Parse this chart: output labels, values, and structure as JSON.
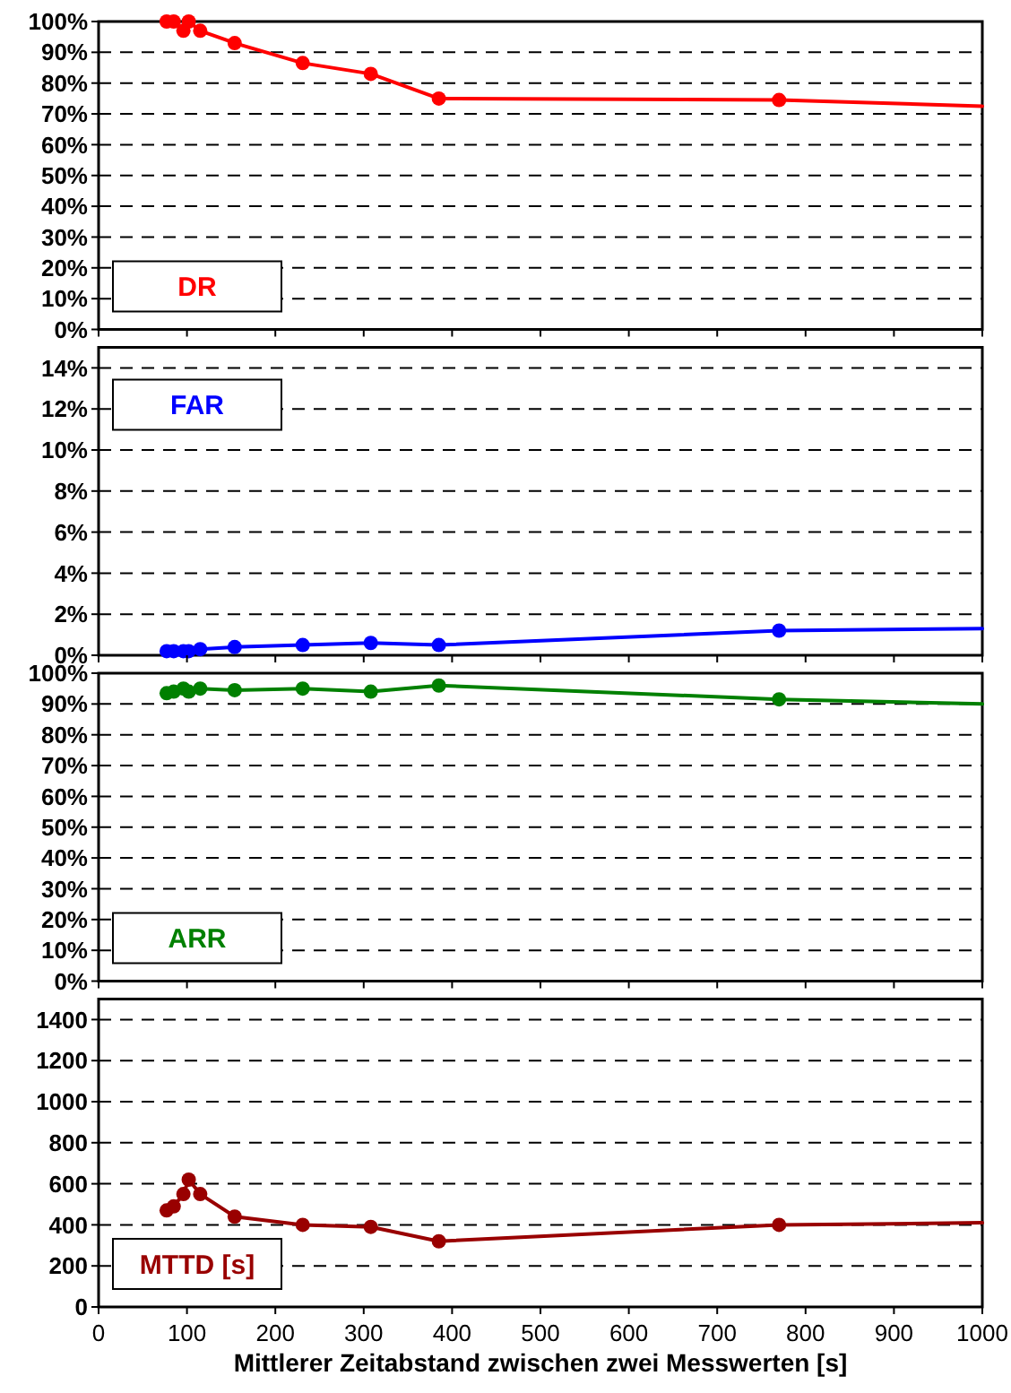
{
  "chart_data": [
    {
      "type": "line",
      "xlim": [
        0,
        1000
      ],
      "xticks": [
        0,
        100,
        200,
        300,
        400,
        500,
        600,
        700,
        800,
        900,
        1000
      ],
      "ylim": [
        0,
        100
      ],
      "yticks": [
        {
          "value": 0,
          "label": "0%"
        },
        {
          "value": 10,
          "label": "10%"
        },
        {
          "value": 20,
          "label": "20%"
        },
        {
          "value": 30,
          "label": "30%"
        },
        {
          "value": 40,
          "label": "40%"
        },
        {
          "value": 50,
          "label": "50%"
        },
        {
          "value": 60,
          "label": "60%"
        },
        {
          "value": 70,
          "label": "70%"
        },
        {
          "value": 80,
          "label": "80%"
        },
        {
          "value": 90,
          "label": "90%"
        },
        {
          "value": 100,
          "label": "100%"
        }
      ],
      "grid": "y",
      "legend": "bottom left",
      "tick_labels": "y",
      "line_style": "solid",
      "series": [
        {
          "name": "DR",
          "color": "#ff0000",
          "marker": "circle",
          "x": [
            77,
            85,
            96,
            102,
            115,
            154,
            231,
            308,
            385,
            770
          ],
          "values": [
            100,
            100,
            97,
            100,
            97,
            93,
            86.5,
            83,
            75,
            74.5
          ]
        },
        {
          "color": "#ff0000",
          "marker": "none",
          "x": [
            770,
            1000
          ],
          "values": [
            74.5,
            72.5
          ]
        }
      ]
    },
    {
      "type": "line",
      "xlim": [
        0,
        1000
      ],
      "xticks": [
        0,
        100,
        200,
        300,
        400,
        500,
        600,
        700,
        800,
        900,
        1000
      ],
      "ylim": [
        0,
        15
      ],
      "yticks": [
        {
          "value": 0,
          "label": "0%"
        },
        {
          "value": 2,
          "label": "2%"
        },
        {
          "value": 4,
          "label": "4%"
        },
        {
          "value": 6,
          "label": "6%"
        },
        {
          "value": 8,
          "label": "8%"
        },
        {
          "value": 10,
          "label": "10%"
        },
        {
          "value": 12,
          "label": "12%"
        },
        {
          "value": 14,
          "label": "14%"
        }
      ],
      "grid": "y",
      "legend": "top left",
      "tick_labels": "y",
      "line_style": "solid",
      "series": [
        {
          "name": "FAR",
          "color": "#0000ff",
          "marker": "circle",
          "x": [
            77,
            85,
            96,
            102,
            115,
            154,
            231,
            308,
            385,
            770
          ],
          "values": [
            0.2,
            0.2,
            0.2,
            0.2,
            0.3,
            0.4,
            0.5,
            0.6,
            0.5,
            1.2
          ]
        },
        {
          "color": "#0000ff",
          "marker": "none",
          "x": [
            770,
            1000
          ],
          "values": [
            1.2,
            1.3
          ]
        }
      ]
    },
    {
      "type": "line",
      "xlim": [
        0,
        1000
      ],
      "xticks": [
        0,
        100,
        200,
        300,
        400,
        500,
        600,
        700,
        800,
        900,
        1000
      ],
      "ylim": [
        0,
        100
      ],
      "yticks": [
        {
          "value": 0,
          "label": "0%"
        },
        {
          "value": 10,
          "label": "10%"
        },
        {
          "value": 20,
          "label": "20%"
        },
        {
          "value": 30,
          "label": "30%"
        },
        {
          "value": 40,
          "label": "40%"
        },
        {
          "value": 50,
          "label": "50%"
        },
        {
          "value": 60,
          "label": "60%"
        },
        {
          "value": 70,
          "label": "70%"
        },
        {
          "value": 80,
          "label": "80%"
        },
        {
          "value": 90,
          "label": "90%"
        },
        {
          "value": 100,
          "label": "100%"
        }
      ],
      "grid": "y",
      "legend": "bottom left",
      "tick_labels": "y",
      "line_style": "solid",
      "series": [
        {
          "name": "ARR",
          "color": "#008000",
          "marker": "circle",
          "x": [
            77,
            85,
            96,
            102,
            115,
            154,
            231,
            308,
            385,
            770
          ],
          "values": [
            93.5,
            94,
            95,
            94,
            95,
            94.5,
            95,
            94,
            96,
            91.5
          ]
        },
        {
          "color": "#008000",
          "marker": "none",
          "x": [
            770,
            1000
          ],
          "values": [
            91.5,
            90
          ]
        }
      ]
    },
    {
      "type": "line",
      "xlim": [
        0,
        1000
      ],
      "xticks": [
        0,
        100,
        200,
        300,
        400,
        500,
        600,
        700,
        800,
        900,
        1000
      ],
      "ylim": [
        0,
        1500
      ],
      "yticks": [
        0,
        200,
        400,
        600,
        800,
        1000,
        1200,
        1400
      ],
      "grid": "y",
      "legend": "bottom left",
      "xlabel": "Mittlerer Zeitabstand zwischen zwei Messwerten [s]",
      "line_style": "solid",
      "series": [
        {
          "name": "MTTD [s]",
          "color": "#990000",
          "marker": "circle",
          "x": [
            77,
            85,
            96,
            102,
            115,
            154,
            231,
            308,
            385,
            770
          ],
          "values": [
            470,
            490,
            550,
            620,
            550,
            440,
            400,
            390,
            320,
            400
          ]
        },
        {
          "color": "#990000",
          "marker": "none",
          "x": [
            770,
            1000
          ],
          "values": [
            400,
            410
          ]
        }
      ]
    }
  ]
}
